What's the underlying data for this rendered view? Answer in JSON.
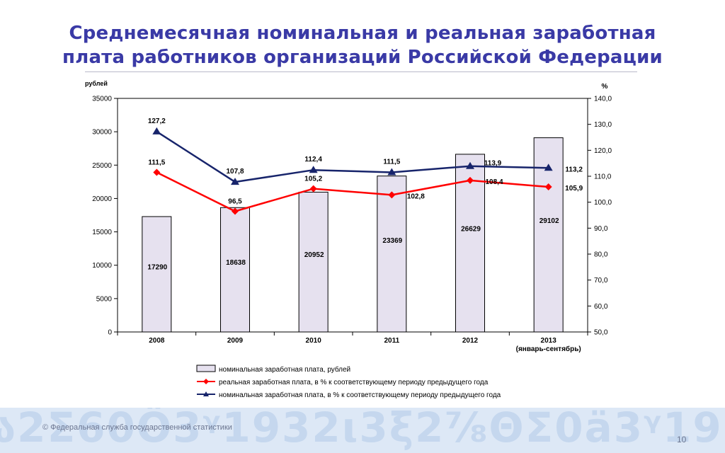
{
  "slide": {
    "title_line1": "Среднемесячная номинальная и реальная заработная",
    "title_line2": "плата работников организаций Российской Федерации",
    "copyright": "© Федеральная служба государственной статистики",
    "page_number": "10"
  },
  "colors": {
    "title": "#3a3aa6",
    "bar_fill": "#e6e1ef",
    "real_line": "#ff0000",
    "nominal_line": "#17246b",
    "footer_band": "#dde8f6"
  },
  "chart_data": {
    "type": "bar+line",
    "title": "",
    "y_left_label": "рублей",
    "y_right_label": "%",
    "y_left_range": [
      0,
      35000
    ],
    "y_left_ticks": [
      "0",
      "5000",
      "10000",
      "15000",
      "20000",
      "25000",
      "30000",
      "35000"
    ],
    "y_right_range": [
      50,
      140
    ],
    "y_right_ticks": [
      "50,0",
      "60,0",
      "70,0",
      "80,0",
      "90,0",
      "100,0",
      "110,0",
      "120,0",
      "130,0",
      "140,0"
    ],
    "categories": [
      "2008",
      "2009",
      "2010",
      "2011",
      "2012",
      "2013"
    ],
    "category_sublabels": [
      "",
      "",
      "",
      "",
      "",
      "(январь-сентябрь)"
    ],
    "grid": false,
    "legend_position": "bottom",
    "series": [
      {
        "name": "номинальная заработная плата, рублей",
        "kind": "bar",
        "axis": "left",
        "values": [
          17290,
          18638,
          20952,
          23369,
          26629,
          29102
        ],
        "labels": [
          "17290",
          "18638",
          "20952",
          "23369",
          "26629",
          "29102"
        ]
      },
      {
        "name": "реальная заработная плата, в % к соответствующему периоду предыдущего года",
        "kind": "line",
        "marker": "diamond",
        "axis": "right",
        "values": [
          111.5,
          96.5,
          105.2,
          102.8,
          108.4,
          105.9
        ],
        "labels": [
          "111,5",
          "96,5",
          "105,2",
          "102,8",
          "108,4",
          "105,9"
        ]
      },
      {
        "name": "номинальная заработная плата, в % к соответствующему периоду предыдущего года",
        "kind": "line",
        "marker": "triangle",
        "axis": "right",
        "values": [
          127.2,
          107.8,
          112.4,
          111.5,
          113.9,
          113.2
        ],
        "labels": [
          "127,2",
          "107,8",
          "112,4",
          "111,5",
          "113,9",
          "113,2"
        ]
      }
    ]
  }
}
